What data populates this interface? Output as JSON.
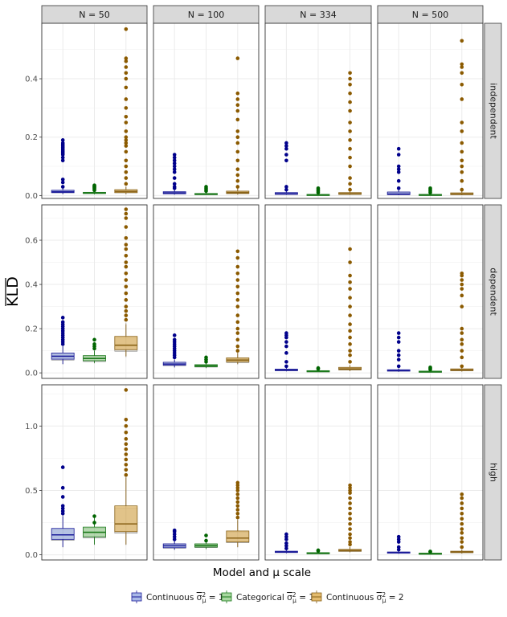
{
  "chart_data": {
    "type": "boxplot-facet-grid",
    "columns": [
      "N = 50",
      "N = 100",
      "N = 334",
      "N = 500"
    ],
    "rows": [
      "independent",
      "dependent",
      "high"
    ],
    "ylabel": "KLD",
    "xlabel": "Model and μ scale",
    "legend": {
      "items": [
        {
          "prefix": "Continuous ",
          "sigma": "σ",
          "sub": "μ",
          "sup": "2",
          "suffix": " = 1",
          "fill": "#a9b9e6",
          "line": "#1c1c9a"
        },
        {
          "prefix": "Categorical ",
          "sigma": "σ",
          "sub": "μ",
          "sup": "2",
          "suffix": " = 1",
          "fill": "#a8d7a0",
          "line": "#1c7a1c"
        },
        {
          "prefix": "Continuous ",
          "sigma": "σ",
          "sub": "μ",
          "sup": "2",
          "suffix": " = 2",
          "fill": "#e3bb6e",
          "line": "#8a6318"
        }
      ]
    },
    "series_colors": {
      "point": [
        "#00008b",
        "#006400",
        "#8b5a00"
      ]
    },
    "row_axes": [
      {
        "ylim": [
          -0.01,
          0.59
        ],
        "ticks": [
          0.0,
          0.2,
          0.4
        ],
        "tick_labels": [
          "0.0",
          "0.2",
          "0.4"
        ]
      },
      {
        "ylim": [
          -0.025,
          0.76
        ],
        "ticks": [
          0.0,
          0.2,
          0.4,
          0.6
        ],
        "tick_labels": [
          "0.0",
          "0.2",
          "0.4",
          "0.6"
        ]
      },
      {
        "ylim": [
          -0.04,
          1.32
        ],
        "ticks": [
          0.0,
          0.5,
          1.0
        ],
        "tick_labels": [
          "0.0",
          "0.5",
          "1.0"
        ]
      }
    ],
    "panels": [
      [
        [
          {
            "q1": 0.01,
            "med": 0.013,
            "q3": 0.018,
            "wlo": 0.005,
            "whi": 0.025,
            "out": [
              0.03,
              0.045,
              0.055,
              0.12,
              0.13,
              0.14,
              0.145,
              0.15,
              0.155,
              0.16,
              0.165,
              0.17,
              0.175,
              0.18,
              0.19
            ]
          },
          {
            "q1": 0.007,
            "med": 0.009,
            "q3": 0.011,
            "wlo": 0.004,
            "whi": 0.014,
            "out": [
              0.018,
              0.022,
              0.025,
              0.028,
              0.03,
              0.032,
              0.035
            ]
          },
          {
            "q1": 0.01,
            "med": 0.014,
            "q3": 0.02,
            "wlo": 0.005,
            "whi": 0.03,
            "out": [
              0.04,
              0.06,
              0.08,
              0.1,
              0.12,
              0.15,
              0.17,
              0.18,
              0.19,
              0.2,
              0.22,
              0.25,
              0.27,
              0.3,
              0.33,
              0.37,
              0.4,
              0.42,
              0.44,
              0.46,
              0.47,
              0.57
            ]
          }
        ],
        [
          {
            "q1": 0.006,
            "med": 0.009,
            "q3": 0.013,
            "wlo": 0.003,
            "whi": 0.02,
            "out": [
              0.025,
              0.03,
              0.04,
              0.06,
              0.08,
              0.09,
              0.1,
              0.11,
              0.12,
              0.13,
              0.14
            ]
          },
          {
            "q1": 0.004,
            "med": 0.005,
            "q3": 0.007,
            "wlo": 0.002,
            "whi": 0.01,
            "out": [
              0.015,
              0.02,
              0.025,
              0.03
            ]
          },
          {
            "q1": 0.007,
            "med": 0.01,
            "q3": 0.015,
            "wlo": 0.003,
            "whi": 0.025,
            "out": [
              0.03,
              0.05,
              0.07,
              0.09,
              0.12,
              0.15,
              0.18,
              0.2,
              0.22,
              0.26,
              0.29,
              0.31,
              0.33,
              0.35,
              0.47
            ]
          }
        ],
        [
          {
            "q1": 0.004,
            "med": 0.006,
            "q3": 0.01,
            "wlo": 0.002,
            "whi": 0.015,
            "out": [
              0.02,
              0.03,
              0.12,
              0.14,
              0.16,
              0.17,
              0.18
            ]
          },
          {
            "q1": 0.002,
            "med": 0.003,
            "q3": 0.004,
            "wlo": 0.001,
            "whi": 0.007,
            "out": [
              0.01,
              0.015,
              0.02,
              0.025
            ]
          },
          {
            "q1": 0.004,
            "med": 0.006,
            "q3": 0.01,
            "wlo": 0.002,
            "whi": 0.015,
            "out": [
              0.02,
              0.04,
              0.06,
              0.1,
              0.13,
              0.16,
              0.19,
              0.22,
              0.25,
              0.29,
              0.32,
              0.35,
              0.38,
              0.4,
              0.42
            ]
          }
        ],
        [
          {
            "q1": 0.003,
            "med": 0.005,
            "q3": 0.012,
            "wlo": 0.001,
            "whi": 0.02,
            "out": [
              0.025,
              0.05,
              0.08,
              0.09,
              0.1,
              0.14,
              0.16
            ]
          },
          {
            "q1": 0.002,
            "med": 0.003,
            "q3": 0.004,
            "wlo": 0.001,
            "whi": 0.007,
            "out": [
              0.01,
              0.015,
              0.02,
              0.025
            ]
          },
          {
            "q1": 0.003,
            "med": 0.005,
            "q3": 0.009,
            "wlo": 0.001,
            "whi": 0.015,
            "out": [
              0.02,
              0.05,
              0.08,
              0.1,
              0.12,
              0.15,
              0.18,
              0.22,
              0.25,
              0.33,
              0.38,
              0.42,
              0.44,
              0.45,
              0.53
            ]
          }
        ]
      ],
      [
        [
          {
            "q1": 0.062,
            "med": 0.075,
            "q3": 0.09,
            "wlo": 0.04,
            "whi": 0.12,
            "out": [
              0.13,
              0.14,
              0.15,
              0.16,
              0.17,
              0.18,
              0.19,
              0.2,
              0.21,
              0.22,
              0.23,
              0.25
            ]
          },
          {
            "q1": 0.055,
            "med": 0.065,
            "q3": 0.078,
            "wlo": 0.045,
            "whi": 0.1,
            "out": [
              0.11,
              0.12,
              0.13,
              0.15
            ]
          },
          {
            "q1": 0.105,
            "med": 0.125,
            "q3": 0.165,
            "wlo": 0.075,
            "whi": 0.22,
            "out": [
              0.24,
              0.26,
              0.28,
              0.3,
              0.33,
              0.36,
              0.39,
              0.42,
              0.45,
              0.48,
              0.5,
              0.53,
              0.56,
              0.58,
              0.61,
              0.66,
              0.7,
              0.72,
              0.74
            ]
          }
        ],
        [
          {
            "q1": 0.035,
            "med": 0.04,
            "q3": 0.048,
            "wlo": 0.025,
            "whi": 0.06,
            "out": [
              0.07,
              0.08,
              0.09,
              0.1,
              0.11,
              0.12,
              0.13,
              0.14,
              0.15,
              0.17
            ]
          },
          {
            "q1": 0.028,
            "med": 0.032,
            "q3": 0.037,
            "wlo": 0.022,
            "whi": 0.045,
            "out": [
              0.05,
              0.06,
              0.07
            ]
          },
          {
            "q1": 0.05,
            "med": 0.058,
            "q3": 0.068,
            "wlo": 0.04,
            "whi": 0.09,
            "out": [
              0.1,
              0.12,
              0.15,
              0.18,
              0.2,
              0.23,
              0.26,
              0.3,
              0.33,
              0.36,
              0.39,
              0.42,
              0.45,
              0.48,
              0.52,
              0.55
            ]
          }
        ],
        [
          {
            "q1": 0.01,
            "med": 0.013,
            "q3": 0.017,
            "wlo": 0.007,
            "whi": 0.025,
            "out": [
              0.03,
              0.05,
              0.09,
              0.12,
              0.14,
              0.16,
              0.17,
              0.18
            ]
          },
          {
            "q1": 0.006,
            "med": 0.008,
            "q3": 0.01,
            "wlo": 0.004,
            "whi": 0.014,
            "out": [
              0.018,
              0.022
            ]
          },
          {
            "q1": 0.014,
            "med": 0.018,
            "q3": 0.025,
            "wlo": 0.008,
            "whi": 0.035,
            "out": [
              0.05,
              0.08,
              0.1,
              0.13,
              0.16,
              0.19,
              0.22,
              0.26,
              0.3,
              0.34,
              0.38,
              0.41,
              0.44,
              0.5,
              0.56
            ]
          }
        ],
        [
          {
            "q1": 0.008,
            "med": 0.011,
            "q3": 0.014,
            "wlo": 0.005,
            "whi": 0.02,
            "out": [
              0.03,
              0.06,
              0.08,
              0.1,
              0.14,
              0.16,
              0.18
            ]
          },
          {
            "q1": 0.004,
            "med": 0.006,
            "q3": 0.008,
            "wlo": 0.002,
            "whi": 0.012,
            "out": [
              0.015,
              0.02,
              0.025
            ]
          },
          {
            "q1": 0.01,
            "med": 0.013,
            "q3": 0.018,
            "wlo": 0.006,
            "whi": 0.025,
            "out": [
              0.03,
              0.07,
              0.1,
              0.13,
              0.15,
              0.18,
              0.2,
              0.3,
              0.35,
              0.38,
              0.4,
              0.42,
              0.44,
              0.45
            ]
          }
        ]
      ],
      [
        [
          {
            "q1": 0.12,
            "med": 0.155,
            "q3": 0.205,
            "wlo": 0.06,
            "whi": 0.3,
            "out": [
              0.32,
              0.34,
              0.36,
              0.38,
              0.45,
              0.52,
              0.68
            ]
          },
          {
            "q1": 0.14,
            "med": 0.175,
            "q3": 0.215,
            "wlo": 0.08,
            "whi": 0.3,
            "out": [
              0.25,
              0.3
            ]
          },
          {
            "q1": 0.18,
            "med": 0.24,
            "q3": 0.38,
            "wlo": 0.08,
            "whi": 0.6,
            "out": [
              0.62,
              0.66,
              0.7,
              0.74,
              0.78,
              0.82,
              0.86,
              0.9,
              0.95,
              1.0,
              1.05,
              1.28
            ]
          }
        ],
        [
          {
            "q1": 0.055,
            "med": 0.07,
            "q3": 0.085,
            "wlo": 0.04,
            "whi": 0.11,
            "out": [
              0.12,
              0.14,
              0.16,
              0.18,
              0.19
            ]
          },
          {
            "q1": 0.06,
            "med": 0.072,
            "q3": 0.085,
            "wlo": 0.045,
            "whi": 0.1,
            "out": [
              0.11,
              0.15
            ]
          },
          {
            "q1": 0.1,
            "med": 0.13,
            "q3": 0.185,
            "wlo": 0.06,
            "whi": 0.27,
            "out": [
              0.29,
              0.32,
              0.35,
              0.38,
              0.41,
              0.44,
              0.47,
              0.5,
              0.52,
              0.54,
              0.56
            ]
          }
        ],
        [
          {
            "q1": 0.018,
            "med": 0.022,
            "q3": 0.028,
            "wlo": 0.012,
            "whi": 0.04,
            "out": [
              0.05,
              0.07,
              0.09,
              0.12,
              0.14,
              0.16
            ]
          },
          {
            "q1": 0.01,
            "med": 0.013,
            "q3": 0.017,
            "wlo": 0.007,
            "whi": 0.024,
            "out": [
              0.03,
              0.035
            ]
          },
          {
            "q1": 0.028,
            "med": 0.034,
            "q3": 0.042,
            "wlo": 0.02,
            "whi": 0.06,
            "out": [
              0.08,
              0.1,
              0.13,
              0.16,
              0.2,
              0.24,
              0.28,
              0.32,
              0.36,
              0.4,
              0.44,
              0.48,
              0.5,
              0.52,
              0.54
            ]
          }
        ],
        [
          {
            "q1": 0.013,
            "med": 0.017,
            "q3": 0.022,
            "wlo": 0.008,
            "whi": 0.03,
            "out": [
              0.04,
              0.06,
              0.1,
              0.12,
              0.14
            ]
          },
          {
            "q1": 0.008,
            "med": 0.01,
            "q3": 0.013,
            "wlo": 0.005,
            "whi": 0.018,
            "out": [
              0.022,
              0.026
            ]
          },
          {
            "q1": 0.017,
            "med": 0.022,
            "q3": 0.028,
            "wlo": 0.01,
            "whi": 0.04,
            "out": [
              0.06,
              0.1,
              0.13,
              0.17,
              0.2,
              0.24,
              0.28,
              0.32,
              0.36,
              0.4,
              0.44,
              0.47
            ]
          }
        ]
      ]
    ]
  }
}
